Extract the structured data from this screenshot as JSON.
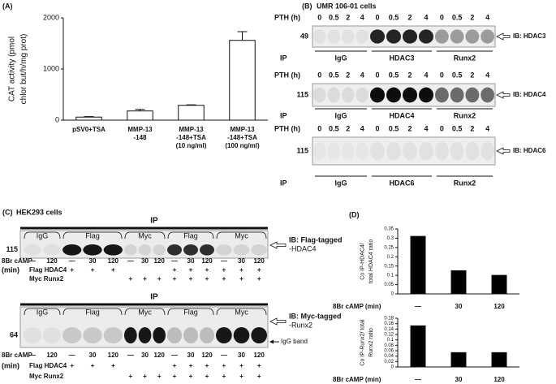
{
  "chart_data": [
    {
      "type": "bar",
      "label": "(A)",
      "ylabel": [
        "CAT activity (pmol",
        "chlor but/h/mg prot)"
      ],
      "categories": [
        [
          "pSV0+TSA"
        ],
        [
          "MMP-13",
          "-148"
        ],
        [
          "MMP-13",
          "-148+TSA",
          "(10 ng/ml)"
        ],
        [
          "MMP-13",
          "-148+TSA",
          "(100 ng/ml)"
        ]
      ],
      "values": [
        60,
        180,
        290,
        1560
      ],
      "errors": [
        10,
        30,
        10,
        170
      ],
      "color": "#ffffff",
      "ylim": [
        0,
        2000
      ],
      "yticks": [
        0,
        1000,
        2000
      ]
    },
    {
      "type": "bar",
      "label": "(D)",
      "ylabel": [
        "Co IP-HDAC4/",
        "total HDAC4 ratio"
      ],
      "xlabel": "8Br cAMP (min)",
      "categories": [
        "—",
        "30",
        "120"
      ],
      "values": [
        0.31,
        0.125,
        0.1
      ],
      "color": "#000000",
      "ylim": [
        0,
        0.35
      ],
      "yticks": [
        0,
        0.05,
        0.1,
        0.15,
        0.2,
        0.25,
        0.3,
        0.35
      ]
    },
    {
      "type": "bar",
      "ylabel": [
        "Co IP-Runx2/ total",
        "Runx2 ratio"
      ],
      "xlabel": "8Br cAMP (min)",
      "categories": [
        "—",
        "30",
        "120"
      ],
      "values": [
        0.152,
        0.053,
        0.053
      ],
      "color": "#000000",
      "ylim": [
        0,
        0.18
      ],
      "yticks": [
        0,
        0.02,
        0.04,
        0.06,
        0.08,
        0.1,
        0.12,
        0.14,
        0.16,
        0.18
      ]
    }
  ],
  "panel_b": {
    "label": "(B)",
    "title": "UMR 106-01 cells",
    "blots": [
      {
        "row_label": "PTH (h)",
        "times": [
          "0",
          "0.5",
          "2",
          "4",
          "0",
          "0.5",
          "2",
          "4",
          "0",
          "0.5",
          "2",
          "4"
        ],
        "marker": "49",
        "ib": "IB: HDAC3",
        "ip": "IP",
        "groups": [
          "IgG",
          "HDAC3",
          "Runx2"
        ]
      },
      {
        "row_label": "PTH (h)",
        "times": [
          "0",
          "0.5",
          "2",
          "4",
          "0",
          "0.5",
          "2",
          "4",
          "0",
          "0.5",
          "2",
          "4"
        ],
        "marker": "115",
        "ib": "IB: HDAC4",
        "ip": "IP",
        "groups": [
          "IgG",
          "HDAC4",
          "Runx2"
        ]
      },
      {
        "row_label": "PTH (h)",
        "times": [
          "0",
          "0.5",
          "2",
          "4",
          "0",
          "0.5",
          "2",
          "4",
          "0",
          "0.5",
          "2",
          "4"
        ],
        "marker": "115",
        "ib": "IB: HDAC6",
        "ip": "IP",
        "groups": [
          "IgG",
          "HDAC6",
          "Runx2"
        ]
      }
    ]
  },
  "panel_c": {
    "label": "(C)",
    "title": "HEK293 cells",
    "blots": [
      {
        "ip": "IP",
        "groups": [
          "IgG",
          "Flag",
          "Myc",
          "Flag",
          "Myc"
        ],
        "marker": "115",
        "ib": [
          "IB: Flag-tagged",
          "-HDAC4"
        ],
        "unit": "(min)",
        "rows": [
          {
            "label": "8Br cAMP",
            "cells": [
              "—",
              "120",
              "—",
              "30",
              "120",
              "—",
              "30",
              "120",
              "—",
              "30",
              "120",
              "—",
              "30",
              "120"
            ]
          },
          {
            "label": "Flag HDAC4",
            "cells": [
              null,
              null,
              "+",
              "+",
              "+",
              null,
              null,
              null,
              "+",
              "+",
              "+",
              "+",
              "+",
              "+"
            ]
          },
          {
            "label": "Myc Runx2",
            "cells": [
              null,
              null,
              null,
              null,
              null,
              "+",
              "+",
              "+",
              "+",
              "+",
              "+",
              "+",
              "+",
              "+"
            ]
          }
        ]
      },
      {
        "ip": "IP",
        "groups": [
          "IgG",
          "Flag",
          "Myc",
          "Flag",
          "Myc"
        ],
        "marker": "64",
        "ib": [
          "IB: Myc-tagged",
          "-Runx2"
        ],
        "note": "IgG band",
        "unit": "(min)",
        "rows": [
          {
            "label": "8Br cAMP",
            "cells": [
              "—",
              "120",
              "—",
              "30",
              "120",
              "—",
              "30",
              "120",
              "—",
              "30",
              "120",
              "—",
              "30",
              "120"
            ]
          },
          {
            "label": "Flag HDAC4",
            "cells": [
              null,
              null,
              "+",
              "+",
              "+",
              null,
              null,
              null,
              "+",
              "+",
              "+",
              "+",
              "+",
              "+"
            ]
          },
          {
            "label": "Myc Runx2",
            "cells": [
              null,
              null,
              null,
              null,
              null,
              "+",
              "+",
              "+",
              "+",
              "+",
              "+",
              "+",
              "+",
              "+"
            ]
          }
        ]
      }
    ]
  }
}
